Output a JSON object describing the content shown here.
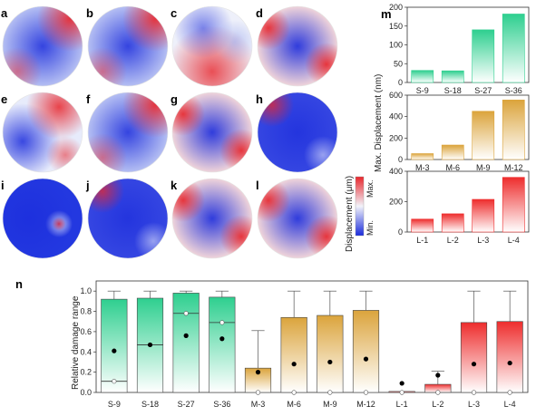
{
  "colors": {
    "green": "#2ecf8f",
    "gold": "#dba43c",
    "red": "#ee2d2d",
    "low": "#1a2bdc",
    "high": "#e8262c",
    "mid": "#f2f3fa"
  },
  "panels": [
    {
      "label": "a",
      "theme": "blue-center-red-corner"
    },
    {
      "label": "b",
      "theme": "blue-center-red-corner"
    },
    {
      "label": "c",
      "theme": "red-lower-blue-upper"
    },
    {
      "label": "d",
      "theme": "blue-center-red-ring"
    },
    {
      "label": "e",
      "theme": "blue-left-red-top"
    },
    {
      "label": "f",
      "theme": "blue-center-red-corner"
    },
    {
      "label": "g",
      "theme": "blue-center-red-ring"
    },
    {
      "label": "h",
      "theme": "blue-dominant"
    },
    {
      "label": "i",
      "theme": "blue-point"
    },
    {
      "label": "j",
      "theme": "blue-dominant"
    },
    {
      "label": "k",
      "theme": "blue-center-red-ring"
    },
    {
      "label": "l",
      "theme": "blue-center-red-ring"
    }
  ],
  "colorbar": {
    "label": "Displacement (μm)",
    "max_label": "Max.",
    "min_label": "Min."
  },
  "panel_m": {
    "label": "m",
    "ylabel": "Max. Displacement (nm)"
  },
  "panel_n": {
    "label": "n",
    "ylabel": "Relative damage range"
  },
  "chart_data": [
    {
      "type": "bar",
      "panel": "m-top",
      "categories": [
        "S-9",
        "S-18",
        "S-27",
        "S-36"
      ],
      "values": [
        32,
        31,
        140,
        182
      ],
      "ylim": [
        0,
        200
      ],
      "yticks": [
        0,
        50,
        100,
        150,
        200
      ],
      "color": "#2ecf8f"
    },
    {
      "type": "bar",
      "panel": "m-middle",
      "categories": [
        "M-3",
        "M-6",
        "M-9",
        "M-12"
      ],
      "values": [
        55,
        135,
        450,
        555
      ],
      "ylim": [
        0,
        600
      ],
      "yticks": [
        0,
        200,
        400,
        600
      ],
      "color": "#dba43c"
    },
    {
      "type": "bar",
      "panel": "m-bottom",
      "categories": [
        "L-1",
        "L-2",
        "L-3",
        "L-4"
      ],
      "values": [
        85,
        120,
        215,
        360
      ],
      "ylim": [
        0,
        400
      ],
      "yticks": [
        0,
        200,
        400
      ],
      "color": "#ee2d2d"
    },
    {
      "type": "box",
      "panel": "n",
      "ylabel": "Relative damage range",
      "ylim": [
        0,
        1.1
      ],
      "yticks": [
        "0.0",
        "0.2",
        "0.4",
        "0.6",
        "0.8",
        "1.0"
      ],
      "categories": [
        "S-9",
        "S-18",
        "S-27",
        "S-36",
        "M-3",
        "M-6",
        "M-9",
        "M-12",
        "L-1",
        "L-2",
        "L-3",
        "L-4"
      ],
      "groups": [
        "green",
        "green",
        "green",
        "green",
        "gold",
        "gold",
        "gold",
        "gold",
        "red",
        "red",
        "red",
        "red"
      ],
      "box_top": [
        0.92,
        0.93,
        0.98,
        0.94,
        0.24,
        0.74,
        0.76,
        0.81,
        0.01,
        0.08,
        0.69,
        0.7
      ],
      "box_bottom": [
        0.0,
        0.0,
        0.0,
        0.0,
        0.0,
        0.0,
        0.0,
        0.0,
        0.0,
        0.0,
        0.0,
        0.0
      ],
      "median": [
        0.11,
        0.47,
        0.78,
        0.69,
        null,
        null,
        null,
        null,
        null,
        null,
        null,
        null
      ],
      "whisker_top": [
        1.0,
        1.0,
        1.0,
        1.0,
        0.61,
        1.0,
        1.0,
        1.0,
        null,
        0.21,
        1.0,
        1.0
      ],
      "mean": [
        0.41,
        0.47,
        0.56,
        0.53,
        0.2,
        0.28,
        0.3,
        0.33,
        0.09,
        0.17,
        0.28,
        0.29
      ],
      "open_marker": [
        0.11,
        null,
        0.78,
        0.69,
        0.0,
        0.0,
        0.0,
        0.0,
        0.0,
        0.0,
        0.0,
        0.0
      ]
    }
  ]
}
